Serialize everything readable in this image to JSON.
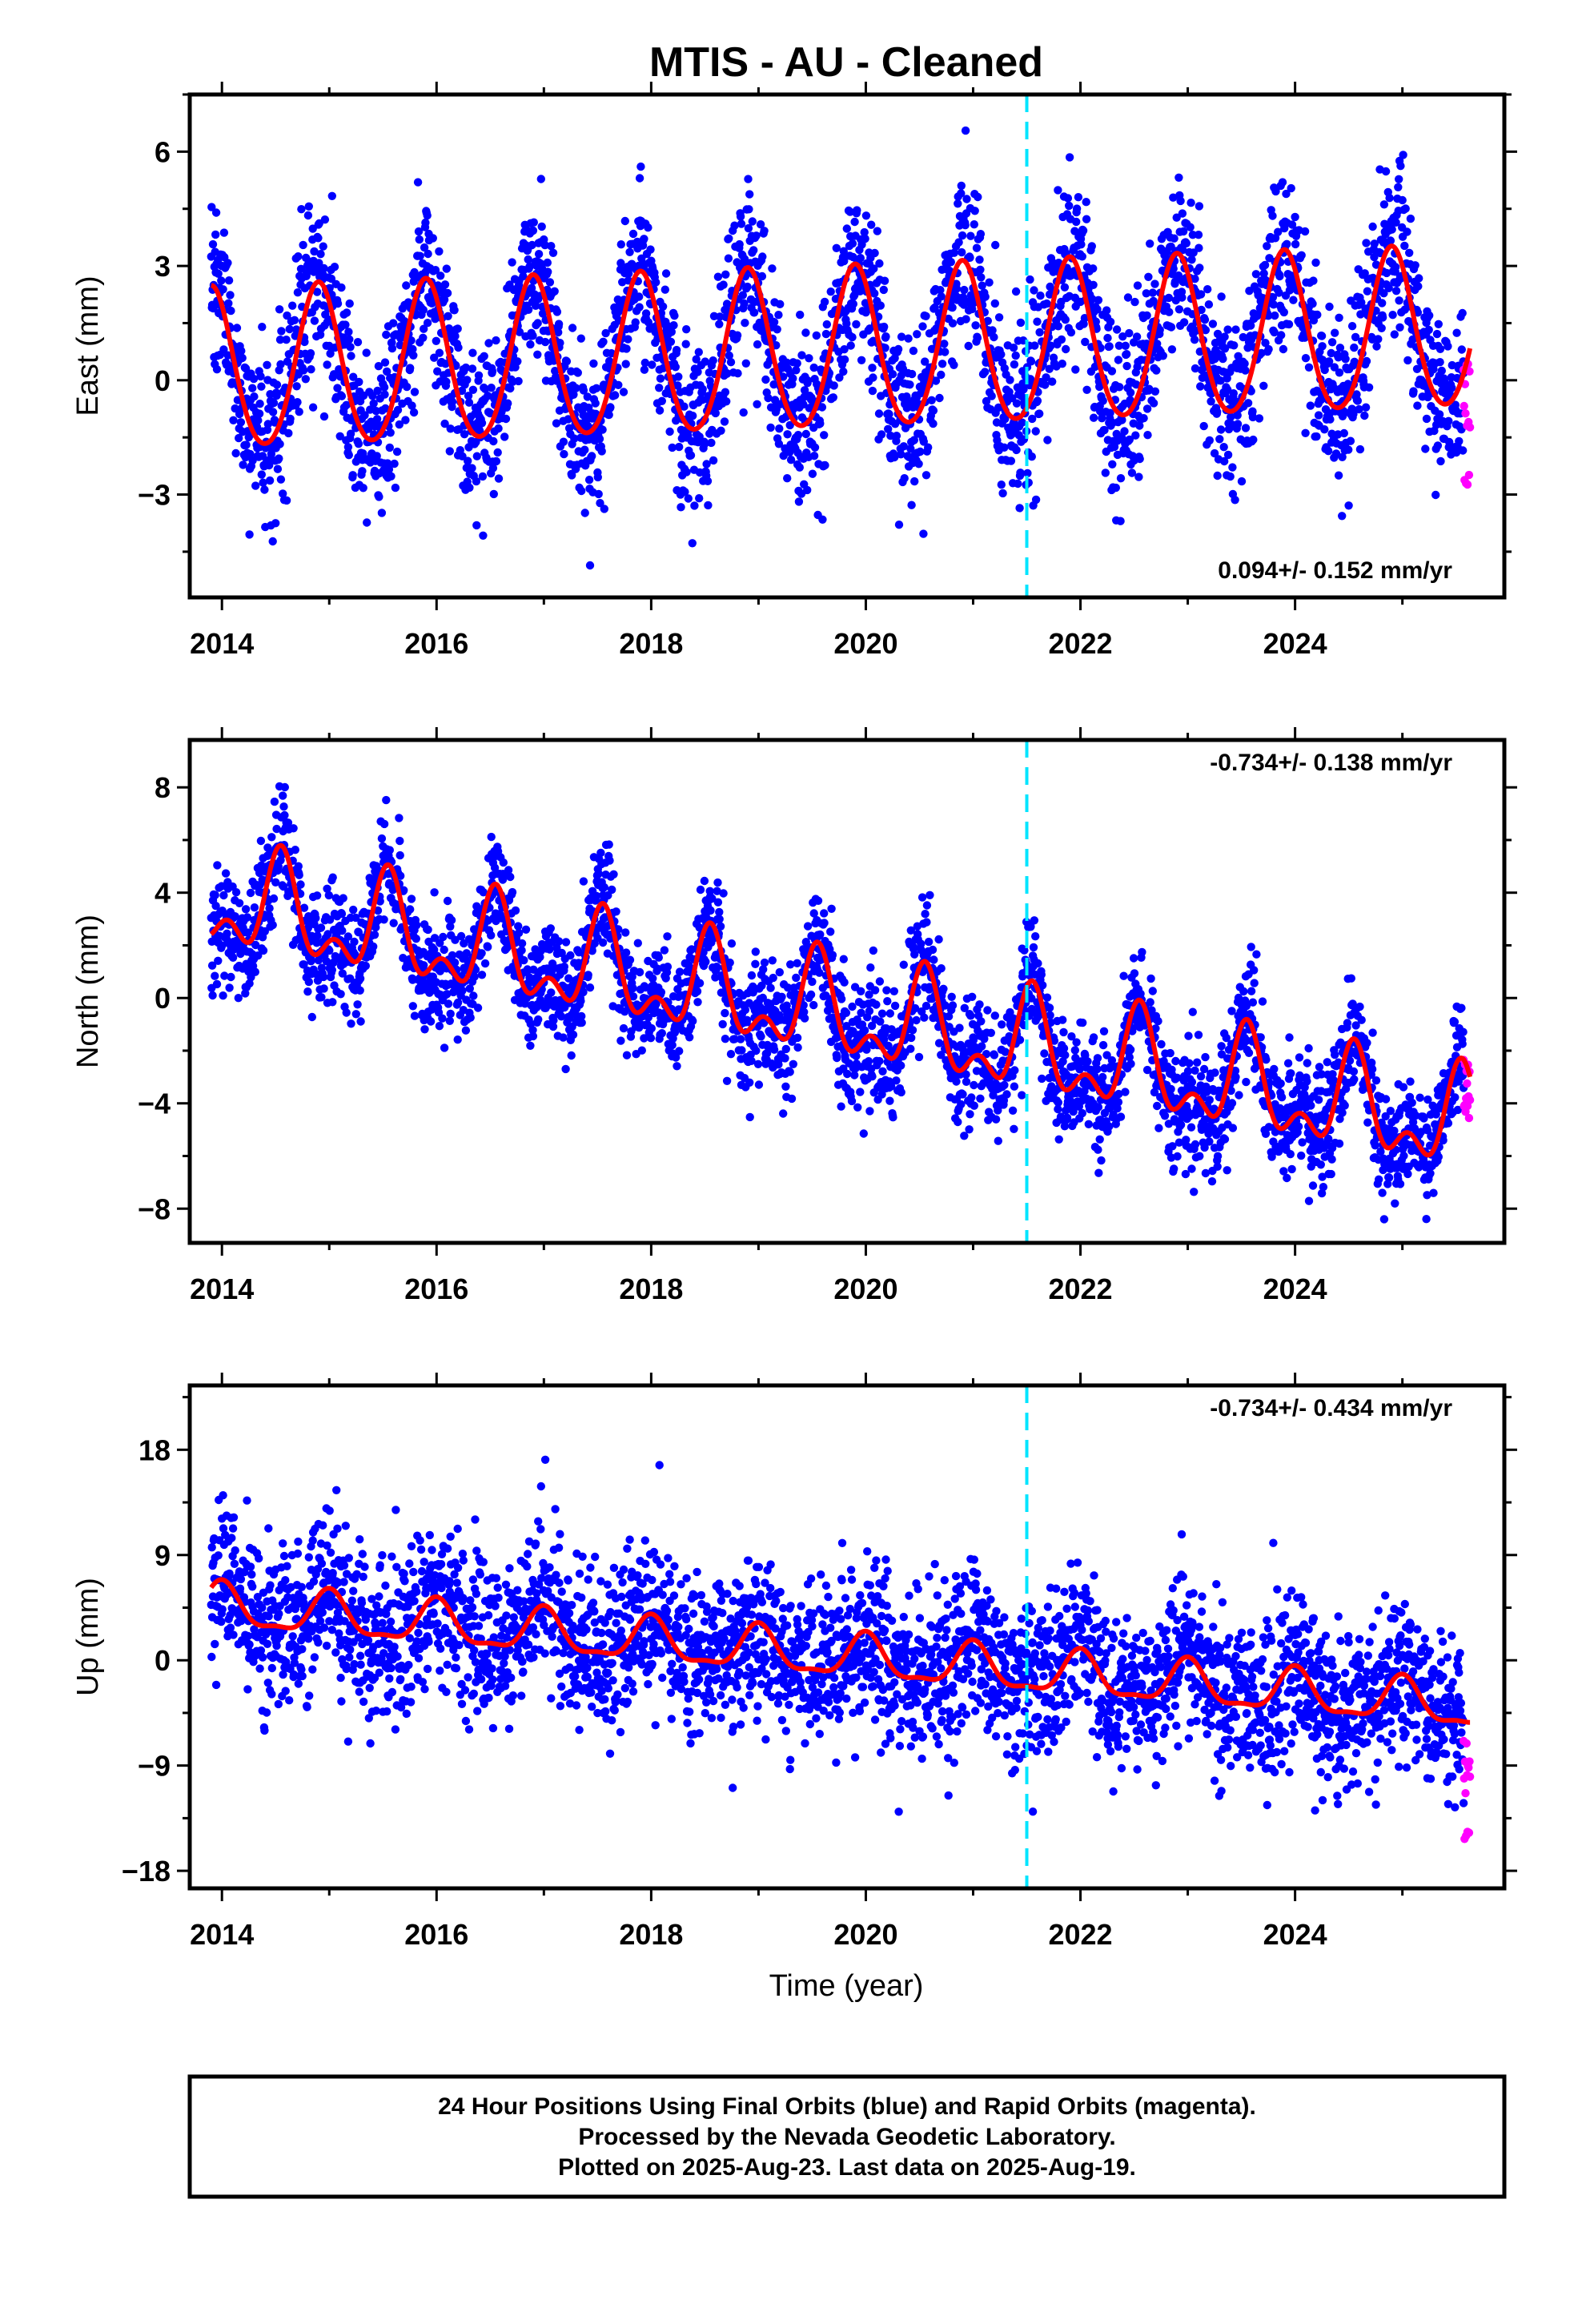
{
  "title": "MTIS  - AU - Cleaned",
  "xlabel": "Time (year)",
  "footer": [
    "24 Hour Positions Using Final Orbits (blue) and Rapid Orbits (magenta).",
    "Processed by the Nevada Geodetic Laboratory.",
    "Plotted on 2025-Aug-23. Last data on 2025-Aug-19."
  ],
  "colors": {
    "final": "#0000ff",
    "rapid": "#ff00ff",
    "model": "#ff0000",
    "event": "#00e5ff"
  },
  "chart_data": [
    {
      "type": "scatter",
      "ylabel": "East (mm)",
      "velocity_text": "0.094+/- 0.152 mm/yr",
      "xlim": [
        2013.7,
        2025.95
      ],
      "ylim": [
        -5.7,
        7.5
      ],
      "xticks": [
        2014,
        2016,
        2018,
        2020,
        2022,
        2024
      ],
      "yticks": [
        -3,
        0,
        3,
        6
      ],
      "data_start": 2013.9,
      "data_end": 2025.63,
      "rapid_start": 2025.57,
      "event_line_x": 2021.5,
      "model": {
        "offset": 0.2,
        "trend": 0.094,
        "annual_amp": 2.1,
        "annual_peak": 2019.9,
        "semi_amp": 0.2,
        "semi_peak": 2019.9
      },
      "noise_sd": 1.1,
      "series": [
        {
          "name": "Final Orbits",
          "x": [
            2014.0,
            2014.5,
            2015.0,
            2015.5,
            2016.0,
            2016.5,
            2017.0,
            2017.5,
            2018.0,
            2018.5,
            2019.0,
            2019.5,
            2020.0,
            2020.5,
            2021.0,
            2021.5,
            2022.0,
            2022.5,
            2023.0,
            2023.5,
            2024.0,
            2024.5,
            2025.0,
            2025.5
          ],
          "y": [
            2.0,
            -2.0,
            1.5,
            -2.8,
            2.0,
            -1.8,
            2.5,
            -1.5,
            3.5,
            -1.6,
            4.0,
            -1.6,
            3.0,
            -1.4,
            2.5,
            -1.0,
            2.2,
            -1.8,
            3.0,
            -2.2,
            2.2,
            -2.4,
            1.5,
            -2.0
          ]
        },
        {
          "name": "Rapid Orbits",
          "x": [
            2025.58,
            2025.6,
            2025.62
          ],
          "y": [
            0.3,
            -1.0,
            -2.5
          ]
        }
      ]
    },
    {
      "type": "scatter",
      "ylabel": "North (mm)",
      "velocity_text": "-0.734+/- 0.138 mm/yr",
      "xlim": [
        2013.7,
        2025.95
      ],
      "ylim": [
        -9.3,
        9.8
      ],
      "xticks": [
        2014,
        2016,
        2018,
        2020,
        2022,
        2024
      ],
      "yticks": [
        -8,
        -4,
        0,
        4,
        8
      ],
      "data_start": 2013.9,
      "data_end": 2025.63,
      "rapid_start": 2025.57,
      "event_line_x": 2021.5,
      "model": {
        "offset": 3.6,
        "trend": -0.734,
        "annual_amp": 1.6,
        "annual_peak": 2014.55,
        "semi_amp": 1.0,
        "semi_peak": 2014.55
      },
      "noise_sd": 1.1,
      "series": [
        {
          "name": "Final Orbits",
          "x": [
            2014.0,
            2014.5,
            2015.0,
            2015.5,
            2016.0,
            2016.5,
            2017.0,
            2017.5,
            2018.0,
            2018.5,
            2019.0,
            2019.5,
            2020.0,
            2020.5,
            2021.0,
            2021.5,
            2022.0,
            2022.5,
            2023.0,
            2023.5,
            2024.0,
            2024.5,
            2025.0,
            2025.5
          ],
          "y": [
            4.5,
            8.0,
            3.0,
            7.0,
            2.5,
            5.0,
            1.0,
            4.0,
            0.5,
            3.5,
            -1.0,
            2.5,
            -1.5,
            1.5,
            -2.5,
            1.0,
            -3.5,
            0.0,
            -3.5,
            -0.5,
            -5.0,
            -1.0,
            -6.0,
            -3.0
          ]
        },
        {
          "name": "Rapid Orbits",
          "x": [
            2025.58,
            2025.6,
            2025.62
          ],
          "y": [
            -2.5,
            -3.8,
            -4.3
          ]
        }
      ]
    },
    {
      "type": "scatter",
      "ylabel": "Up (mm)",
      "velocity_text": "-0.734+/- 0.434 mm/yr",
      "xlim": [
        2013.7,
        2025.95
      ],
      "ylim": [
        -19.5,
        23.5
      ],
      "xticks": [
        2014,
        2016,
        2018,
        2020,
        2022,
        2024
      ],
      "yticks": [
        -18,
        -9,
        0,
        9,
        18
      ],
      "data_start": 2013.9,
      "data_end": 2025.63,
      "rapid_start": 2025.57,
      "event_line_x": 2021.5,
      "model": {
        "offset": 4.5,
        "trend": -0.734,
        "annual_amp": 1.8,
        "annual_peak": 2014.0,
        "semi_amp": 0.6,
        "semi_peak": 2014.0
      },
      "noise_sd": 3.4,
      "series": [
        {
          "name": "Final Orbits",
          "x": [
            2014.0,
            2014.5,
            2015.0,
            2015.5,
            2016.0,
            2016.5,
            2017.0,
            2017.5,
            2018.0,
            2018.5,
            2019.0,
            2019.5,
            2020.0,
            2020.5,
            2021.0,
            2021.5,
            2022.0,
            2022.5,
            2023.0,
            2023.5,
            2024.0,
            2024.5,
            2025.0,
            2025.5
          ],
          "y": [
            7.0,
            3.0,
            6.0,
            2.5,
            5.0,
            1.5,
            4.0,
            1.0,
            4.0,
            0.5,
            3.0,
            -1.0,
            2.5,
            -1.5,
            1.5,
            -3.0,
            0.0,
            -4.5,
            -2.0,
            -6.5,
            -2.0,
            -7.0,
            -1.5,
            -8.0
          ]
        },
        {
          "name": "Rapid Orbits",
          "x": [
            2025.58,
            2025.6,
            2025.62
          ],
          "y": [
            -8.0,
            -10.0,
            -15.5
          ]
        }
      ]
    }
  ]
}
